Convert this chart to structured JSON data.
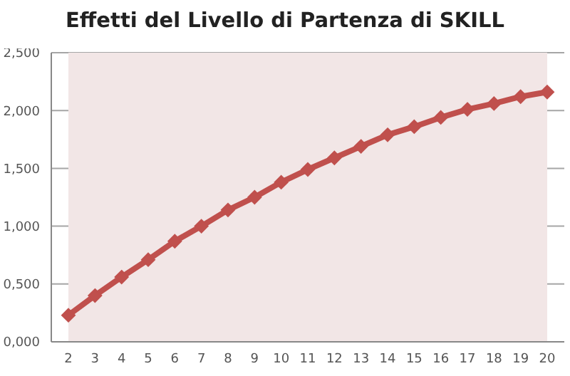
{
  "chart_data": {
    "type": "line",
    "title": "Effetti del Livello di Partenza di SKILL",
    "categories": [
      "2",
      "3",
      "4",
      "5",
      "6",
      "7",
      "8",
      "9",
      "10",
      "11",
      "12",
      "13",
      "14",
      "15",
      "16",
      "17",
      "18",
      "19",
      "20"
    ],
    "series": [
      {
        "color": "#c0504d",
        "values": [
          0.23,
          0.4,
          0.56,
          0.71,
          0.87,
          1.0,
          1.14,
          1.25,
          1.38,
          1.49,
          1.59,
          1.69,
          1.79,
          1.86,
          1.94,
          2.01,
          2.06,
          2.12,
          2.16
        ]
      }
    ],
    "ylim": [
      0,
      2.5
    ],
    "yticks": [
      {
        "value": 0,
        "label": "0,000"
      },
      {
        "value": 0.5,
        "label": "0,500"
      },
      {
        "value": 1,
        "label": "1,000"
      },
      {
        "value": 1.5,
        "label": "1,500"
      },
      {
        "value": 2,
        "label": "2,000"
      },
      {
        "value": 2.5,
        "label": "2,500"
      }
    ],
    "grid": "y",
    "legend": false,
    "marker": "diamond",
    "line_style": "solid"
  }
}
